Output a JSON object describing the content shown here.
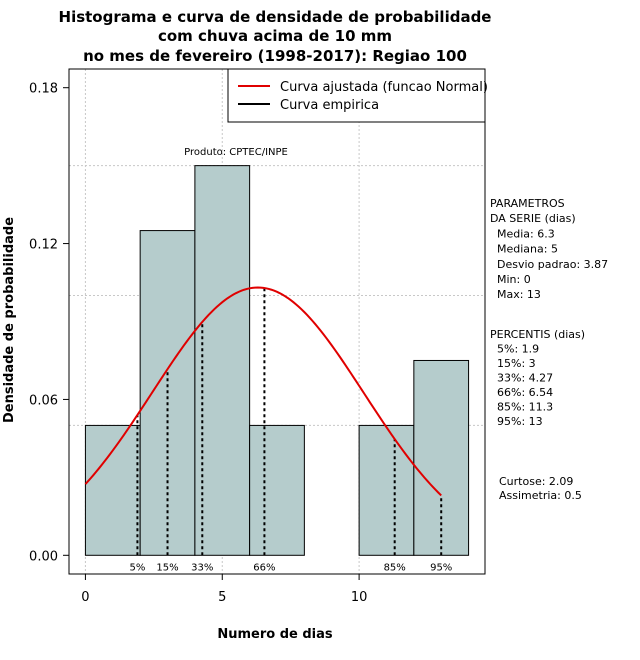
{
  "chart_data": {
    "type": "histogram",
    "title_lines": [
      "Histograma e curva de densidade de probabilidade",
      "com chuva acima de 10 mm",
      "no mes de fevereiro (1998-2017): Regiao 100"
    ],
    "xlabel": "Numero de dias",
    "ylabel": "Densidade de probabilidade",
    "xlim": [
      -0.6,
      14.6
    ],
    "ylim": [
      -0.0072,
      0.1872
    ],
    "x_ticks": [
      0,
      5,
      10
    ],
    "y_ticks": [
      0.0,
      0.06,
      0.12,
      0.18
    ],
    "y_tick_labels": [
      "0.00",
      "0.06",
      "0.12",
      "0.18"
    ],
    "bins": [
      {
        "x0": 0,
        "x1": 2,
        "density": 0.05
      },
      {
        "x0": 2,
        "x1": 4,
        "density": 0.125
      },
      {
        "x0": 4,
        "x1": 6,
        "density": 0.15
      },
      {
        "x0": 6,
        "x1": 8,
        "density": 0.05
      },
      {
        "x0": 8,
        "x1": 10,
        "density": 0.0
      },
      {
        "x0": 10,
        "x1": 12,
        "density": 0.05
      },
      {
        "x0": 12,
        "x1": 14,
        "density": 0.075
      }
    ],
    "grid_x": [
      0,
      5,
      10
    ],
    "grid_y": [
      0.05,
      0.1,
      0.15
    ],
    "normal_fit": {
      "mean": 6.3,
      "sd": 3.87,
      "x_range": [
        0,
        13
      ]
    },
    "percentile_lines": [
      {
        "label": "5%",
        "x": 1.9
      },
      {
        "label": "15%",
        "x": 3
      },
      {
        "label": "33%",
        "x": 4.27
      },
      {
        "label": "66%",
        "x": 6.54
      },
      {
        "label": "85%",
        "x": 11.3
      },
      {
        "label": "95%",
        "x": 13
      }
    ],
    "legend": {
      "position": "top-right",
      "entries": [
        {
          "label": "Curva ajustada (funcao Normal)",
          "color": "#e00000"
        },
        {
          "label": "Curva empirica",
          "color": "#000000"
        }
      ]
    },
    "annotation": "Produto: CPTEC/INPE",
    "bar_color": "#b5cccc",
    "curve_color": "#e00000"
  },
  "side_panel": {
    "parametros_lines": [
      "PARAMETROS",
      "DA SERIE (dias)",
      "  Media: 6.3",
      "  Mediana: 5",
      "  Desvio padrao: 3.87",
      "  Min: 0",
      "  Max: 13"
    ],
    "percentis_lines": [
      "PERCENTIS (dias)",
      "  5%: 1.9",
      "  15%: 3",
      "  33%: 4.27",
      "  66%: 6.54",
      "  85%: 11.3",
      "  95%: 13"
    ],
    "shape_lines": [
      "Curtose: 2.09",
      "Assimetria: 0.5"
    ]
  }
}
